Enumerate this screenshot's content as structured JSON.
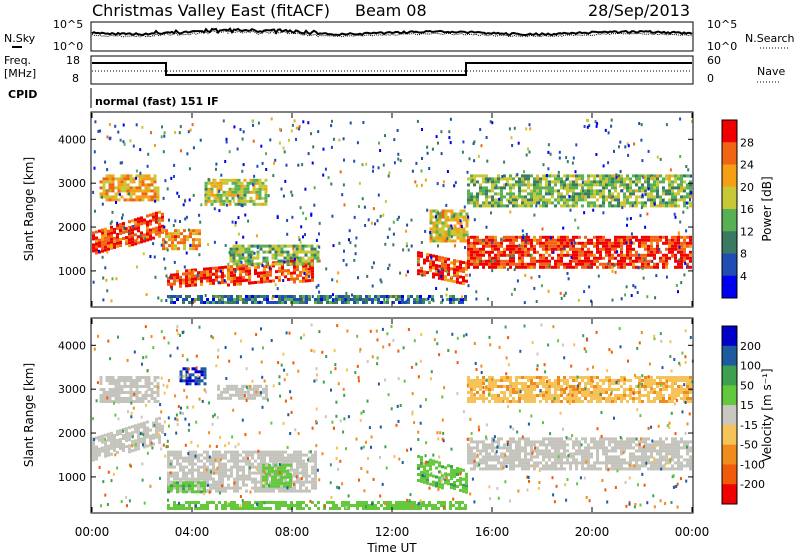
{
  "header": {
    "station": "Christmas Valley East (fitACF)",
    "beam": "Beam 08",
    "date": "28/Sep/2013"
  },
  "labels": {
    "nsky": "N.Sky",
    "nsearch": "N.Search",
    "freq_top": "Freq.",
    "freq_unit": "[MHz]",
    "nave": "Nave",
    "cpid": "CPID",
    "cpid_value": "normal (fast) 151 IF",
    "slant_range": "Slant Range [km]",
    "power_label": "Power [dB]",
    "velocity_label": "Velocity [m s⁻¹]",
    "time_label": "Time UT"
  },
  "axis_ticks": {
    "noise_left": [
      "10^5",
      "10^0"
    ],
    "noise_right": [
      "10^5",
      "10^0"
    ],
    "freq_left": [
      "18",
      "8"
    ],
    "nave_right": [
      "60",
      "0"
    ],
    "range": [
      "1000",
      "2000",
      "3000",
      "4000"
    ],
    "time": [
      "00:00",
      "04:00",
      "08:00",
      "12:00",
      "16:00",
      "20:00",
      "00:00"
    ],
    "power_scale": [
      "4",
      "8",
      "12",
      "16",
      "20",
      "24",
      "28"
    ],
    "velocity_scale": [
      "-200",
      "-100",
      "-50",
      "-15",
      "15",
      "50",
      "100",
      "200"
    ]
  },
  "colors": {
    "power_bands": [
      "#0000f0",
      "#1f4db4",
      "#3a7a62",
      "#58b054",
      "#c8c837",
      "#f5a014",
      "#f06414",
      "#f00000"
    ],
    "velocity_bands": [
      "#f00000",
      "#f05a0a",
      "#f08c1e",
      "#f5c35a",
      "#c8c8c0",
      "#64c83c",
      "#3ca050",
      "#1e5aa0",
      "#0000c8"
    ],
    "ground_scatter": "#c4c4bc"
  },
  "chart_data": [
    {
      "type": "heatmap",
      "title": "Power",
      "xlabel": "Time UT",
      "ylabel": "Slant Range [km]",
      "xlim": [
        0,
        24
      ],
      "ylim": [
        200,
        4600
      ],
      "colorbar_label": "Power [dB]",
      "colorbar_range": [
        0,
        30
      ],
      "features": [
        {
          "t0": 0.0,
          "t1": 2.8,
          "r0": 1400,
          "r1": 1900,
          "r0_end": 1800,
          "r1_end": 2400,
          "value": 26
        },
        {
          "t0": 0.3,
          "t1": 2.6,
          "r0": 2600,
          "r1": 3200,
          "value": 20
        },
        {
          "t0": 2.8,
          "t1": 4.3,
          "r0": 1500,
          "r1": 1950,
          "value": 22
        },
        {
          "t0": 3.0,
          "t1": 8.8,
          "r0": 650,
          "r1": 1000,
          "r0_end": 800,
          "r1_end": 1300,
          "value": 26
        },
        {
          "t0": 5.5,
          "t1": 9.0,
          "r0": 1150,
          "r1": 1600,
          "value": 14
        },
        {
          "t0": 4.5,
          "t1": 7.0,
          "r0": 2500,
          "r1": 3100,
          "value": 16
        },
        {
          "t0": 13.0,
          "t1": 15.0,
          "r0": 950,
          "r1": 1450,
          "r0_end": 700,
          "r1_end": 1200,
          "value": 26
        },
        {
          "t0": 13.5,
          "t1": 15.0,
          "r0": 1700,
          "r1": 2400,
          "value": 18
        },
        {
          "t0": 15.0,
          "t1": 24.0,
          "r0": 1100,
          "r1": 1800,
          "value": 27
        },
        {
          "t0": 15.0,
          "t1": 24.0,
          "r0": 2500,
          "r1": 3200,
          "value": 14
        },
        {
          "t0": 3.0,
          "t1": 15.0,
          "r0": 250,
          "r1": 450,
          "value": 8
        }
      ]
    },
    {
      "type": "heatmap",
      "title": "Velocity",
      "xlabel": "Time UT",
      "ylabel": "Slant Range [km]",
      "xlim": [
        0,
        24
      ],
      "ylim": [
        200,
        4600
      ],
      "colorbar_label": "Velocity [m s⁻¹]",
      "colorbar_range": [
        -250,
        250
      ],
      "features": [
        {
          "t0": 0.0,
          "t1": 2.8,
          "r0": 1400,
          "r1": 1900,
          "r0_end": 1800,
          "r1_end": 2400,
          "value": 0,
          "ground": true
        },
        {
          "t0": 0.3,
          "t1": 2.6,
          "r0": 2700,
          "r1": 3300,
          "value": 0,
          "ground": true
        },
        {
          "t0": 3.0,
          "t1": 9.0,
          "r0": 650,
          "r1": 1600,
          "value": 0,
          "ground": true
        },
        {
          "t0": 3.0,
          "t1": 4.5,
          "r0": 650,
          "r1": 900,
          "value": 40
        },
        {
          "t0": 6.8,
          "t1": 8.0,
          "r0": 800,
          "r1": 1300,
          "value": 35
        },
        {
          "t0": 5.0,
          "t1": 7.0,
          "r0": 2800,
          "r1": 3100,
          "value": 0,
          "ground": true
        },
        {
          "t0": 3.5,
          "t1": 4.5,
          "r0": 3100,
          "r1": 3500,
          "value": 200
        },
        {
          "t0": 13.0,
          "t1": 15.0,
          "r0": 900,
          "r1": 1500,
          "r0_end": 650,
          "r1_end": 1150,
          "value": 40
        },
        {
          "t0": 15.0,
          "t1": 24.0,
          "r0": 1150,
          "r1": 1900,
          "value": 0,
          "ground": true
        },
        {
          "t0": 15.0,
          "t1": 24.0,
          "r0": 2700,
          "r1": 3300,
          "value": -40
        },
        {
          "t0": 3.0,
          "t1": 15.0,
          "r0": 250,
          "r1": 450,
          "value": 30
        }
      ]
    }
  ]
}
